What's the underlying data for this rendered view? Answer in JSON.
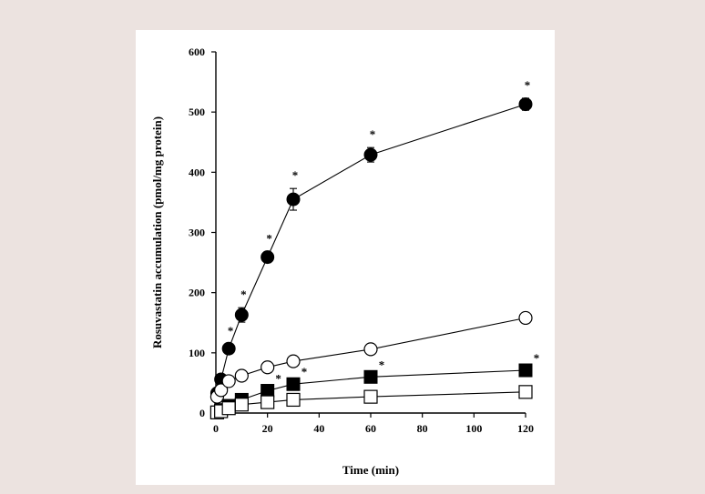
{
  "colors": {
    "page_background": "#ece3e0",
    "card_background": "#ffffff",
    "ink": "#000000",
    "open_marker_fill": "#ffffff"
  },
  "chart_data": {
    "type": "scatter",
    "title": "",
    "xlabel": "Time (min)",
    "ylabel": "Rosuvastatin accumulation (pmol/mg protein)",
    "xlim": [
      0,
      120
    ],
    "ylim": [
      0,
      600
    ],
    "xticks": [
      0,
      20,
      40,
      60,
      80,
      100,
      120
    ],
    "yticks": [
      0,
      100,
      200,
      300,
      400,
      500,
      600
    ],
    "grid": false,
    "legend": "none",
    "significance_marker": "*",
    "series": [
      {
        "marker": "filled-circle",
        "x": [
          0.5,
          2,
          5,
          10,
          20,
          30,
          60,
          120
        ],
        "y": [
          33,
          56,
          107,
          163,
          259,
          355,
          429,
          513
        ],
        "error": [
          5,
          6,
          8,
          12,
          9,
          18,
          12,
          10
        ],
        "significant": [
          false,
          false,
          true,
          true,
          true,
          true,
          true,
          true
        ]
      },
      {
        "marker": "open-circle",
        "x": [
          0.5,
          2,
          5,
          10,
          20,
          30,
          60,
          120
        ],
        "y": [
          27,
          38,
          53,
          62,
          76,
          86,
          106,
          158
        ],
        "error": [
          0,
          0,
          0,
          0,
          0,
          0,
          0,
          0
        ],
        "significant": [
          false,
          false,
          false,
          false,
          false,
          false,
          false,
          false
        ]
      },
      {
        "marker": "filled-square",
        "x": [
          0.5,
          2,
          5,
          10,
          20,
          30,
          60,
          120
        ],
        "y": [
          1,
          5,
          12,
          22,
          37,
          48,
          60,
          71
        ],
        "error": [
          0,
          0,
          0,
          0,
          0,
          0,
          0,
          0
        ],
        "significant": [
          false,
          false,
          false,
          false,
          true,
          true,
          true,
          true
        ]
      },
      {
        "marker": "open-square",
        "x": [
          0.5,
          2,
          5,
          10,
          20,
          30,
          60,
          120
        ],
        "y": [
          1,
          3,
          8,
          14,
          18,
          22,
          27,
          35
        ],
        "error": [
          0,
          0,
          0,
          0,
          0,
          0,
          0,
          0
        ],
        "significant": [
          false,
          false,
          false,
          false,
          false,
          false,
          false,
          false
        ]
      }
    ]
  }
}
